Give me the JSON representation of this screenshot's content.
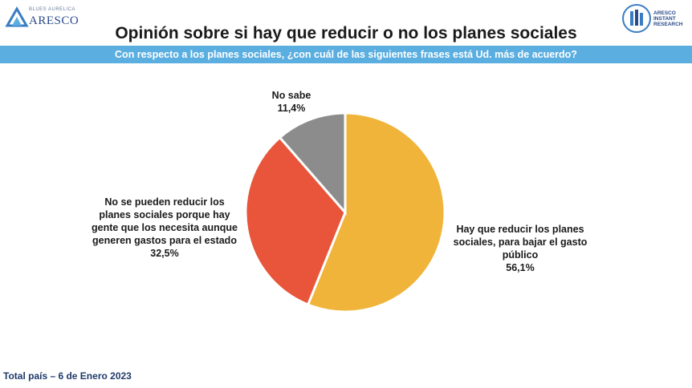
{
  "header": {
    "logo_left_small": "BLUES AURELICA",
    "logo_left_brand": "ARESCO",
    "logo_right_text": [
      "ARESCO",
      "INSTANT",
      "RESEARCH"
    ],
    "title": "Opinión sobre si hay que reducir o no los planes sociales",
    "subtitle": "Con respecto a los planes sociales, ¿con cuál de las siguientes frases está Ud. más de acuerdo?"
  },
  "chart_data": {
    "type": "pie",
    "title": "Opinión sobre si hay que reducir o no los planes sociales",
    "slices": [
      {
        "label": "Hay que reducir los planes sociales, para bajar el gasto público",
        "value": 56.1,
        "value_label": "56,1%",
        "color": "#f0b43a"
      },
      {
        "label": "No se pueden reducir los planes sociales porque hay gente que los necesita aunque generen gastos para el estado",
        "value": 32.5,
        "value_label": "32,5%",
        "color": "#e8553a"
      },
      {
        "label": "No sabe",
        "value": 11.4,
        "value_label": "11,4%",
        "color": "#8c8c8c"
      }
    ]
  },
  "footer": {
    "note": "Total país – 6 de Enero 2023"
  },
  "colors": {
    "accent_bar": "#5aaee0",
    "footer_text": "#1f3a6b"
  }
}
